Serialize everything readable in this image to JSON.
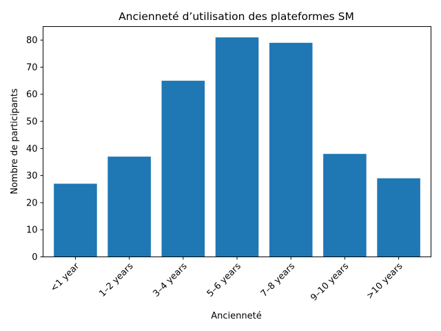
{
  "chart_data": {
    "type": "bar",
    "title": "Ancienneté d’utilisation des plateformes SM",
    "xlabel": "Ancienneté",
    "ylabel": "Nombre de participants",
    "categories": [
      "<1 year",
      "1–2 years",
      "3–4 years",
      "5–6 years",
      "7–8 years",
      "9–10 years",
      ">10 years"
    ],
    "values": [
      27,
      37,
      65,
      81,
      79,
      38,
      29
    ],
    "ylim": [
      0,
      85
    ],
    "yticks": [
      0,
      10,
      20,
      30,
      40,
      50,
      60,
      70,
      80
    ],
    "bar_color": "#1f77b4",
    "grid": false,
    "legend": "none"
  }
}
